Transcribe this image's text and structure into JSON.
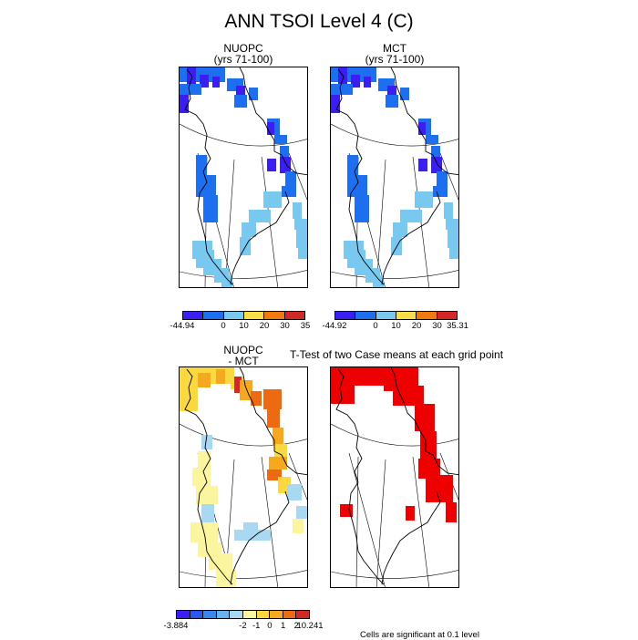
{
  "figure": {
    "title": "ANN TSOI Level 4 (C)",
    "note": "Cells are significant at 0.1 level"
  },
  "panels": [
    {
      "key": "p1",
      "title": "NUOPC",
      "subtitle": "(yrs 71-100)"
    },
    {
      "key": "p2",
      "title": "MCT",
      "subtitle": "(yrs 71-100)"
    },
    {
      "key": "p3",
      "title": "NUOPC",
      "subtitle": "- MCT"
    },
    {
      "key": "p4",
      "title": "T-Test of two Case means at each grid point",
      "subtitle": ""
    }
  ],
  "colorbars": [
    {
      "key": "cb1",
      "colors": [
        "#3b1ef2",
        "#1e6ef0",
        "#78c8f0",
        "#f9e04a",
        "#f07a10",
        "#d22828"
      ],
      "labels": [
        "-44.94",
        "0",
        "10",
        "20",
        "30",
        "35"
      ]
    },
    {
      "key": "cb2",
      "colors": [
        "#3b1ef2",
        "#1e6ef0",
        "#78c8f0",
        "#f9e04a",
        "#f07a10",
        "#d22828"
      ],
      "labels": [
        "-44.92",
        "0",
        "10",
        "20",
        "30",
        "35.31"
      ]
    },
    {
      "key": "cb3",
      "colors": [
        "#3b1ef2",
        "#2d55f0",
        "#3a86ee",
        "#6cb2f0",
        "#a8d8f2",
        "#fcf5a0",
        "#f9d840",
        "#f5a820",
        "#ee6a12",
        "#d22828"
      ],
      "labels": [
        "-3.884",
        "-2",
        "-1",
        "0",
        "1",
        "2",
        "10.241"
      ]
    }
  ],
  "chart_data": [
    {
      "type": "heatmap",
      "title": "NUOPC",
      "subtitle": "(yrs 71-100)",
      "region": "Greenland",
      "colorbar": {
        "min": -44.94,
        "max": 35,
        "ticks": [
          -44.94,
          0,
          10,
          20,
          30,
          35
        ]
      },
      "dominant_values": "mostly -44.94 to 0 along coast, 0 to 10 in south"
    },
    {
      "type": "heatmap",
      "title": "MCT",
      "subtitle": "(yrs 71-100)",
      "region": "Greenland",
      "colorbar": {
        "min": -44.92,
        "max": 35.31,
        "ticks": [
          -44.92,
          0,
          10,
          20,
          30,
          35.31
        ]
      },
      "dominant_values": "mostly -44.92 to 0 along coast, 0 to 10 in south"
    },
    {
      "type": "heatmap",
      "title": "NUOPC - MCT",
      "region": "Greenland",
      "colorbar": {
        "min": -3.884,
        "max": 10.241,
        "ticks": [
          -3.884,
          -2,
          -1,
          0,
          1,
          2,
          10.241
        ]
      },
      "dominant_values": "mostly 0 to 2, up to 10.241 on north and east coast"
    },
    {
      "type": "heatmap",
      "title": "T-Test of two Case means at each grid point",
      "region": "Greenland",
      "note": "Cells are significant at 0.1 level",
      "significant_color": "#ee0000"
    }
  ],
  "colors": {
    "outline": "#000000",
    "significant": "#ee0000"
  }
}
